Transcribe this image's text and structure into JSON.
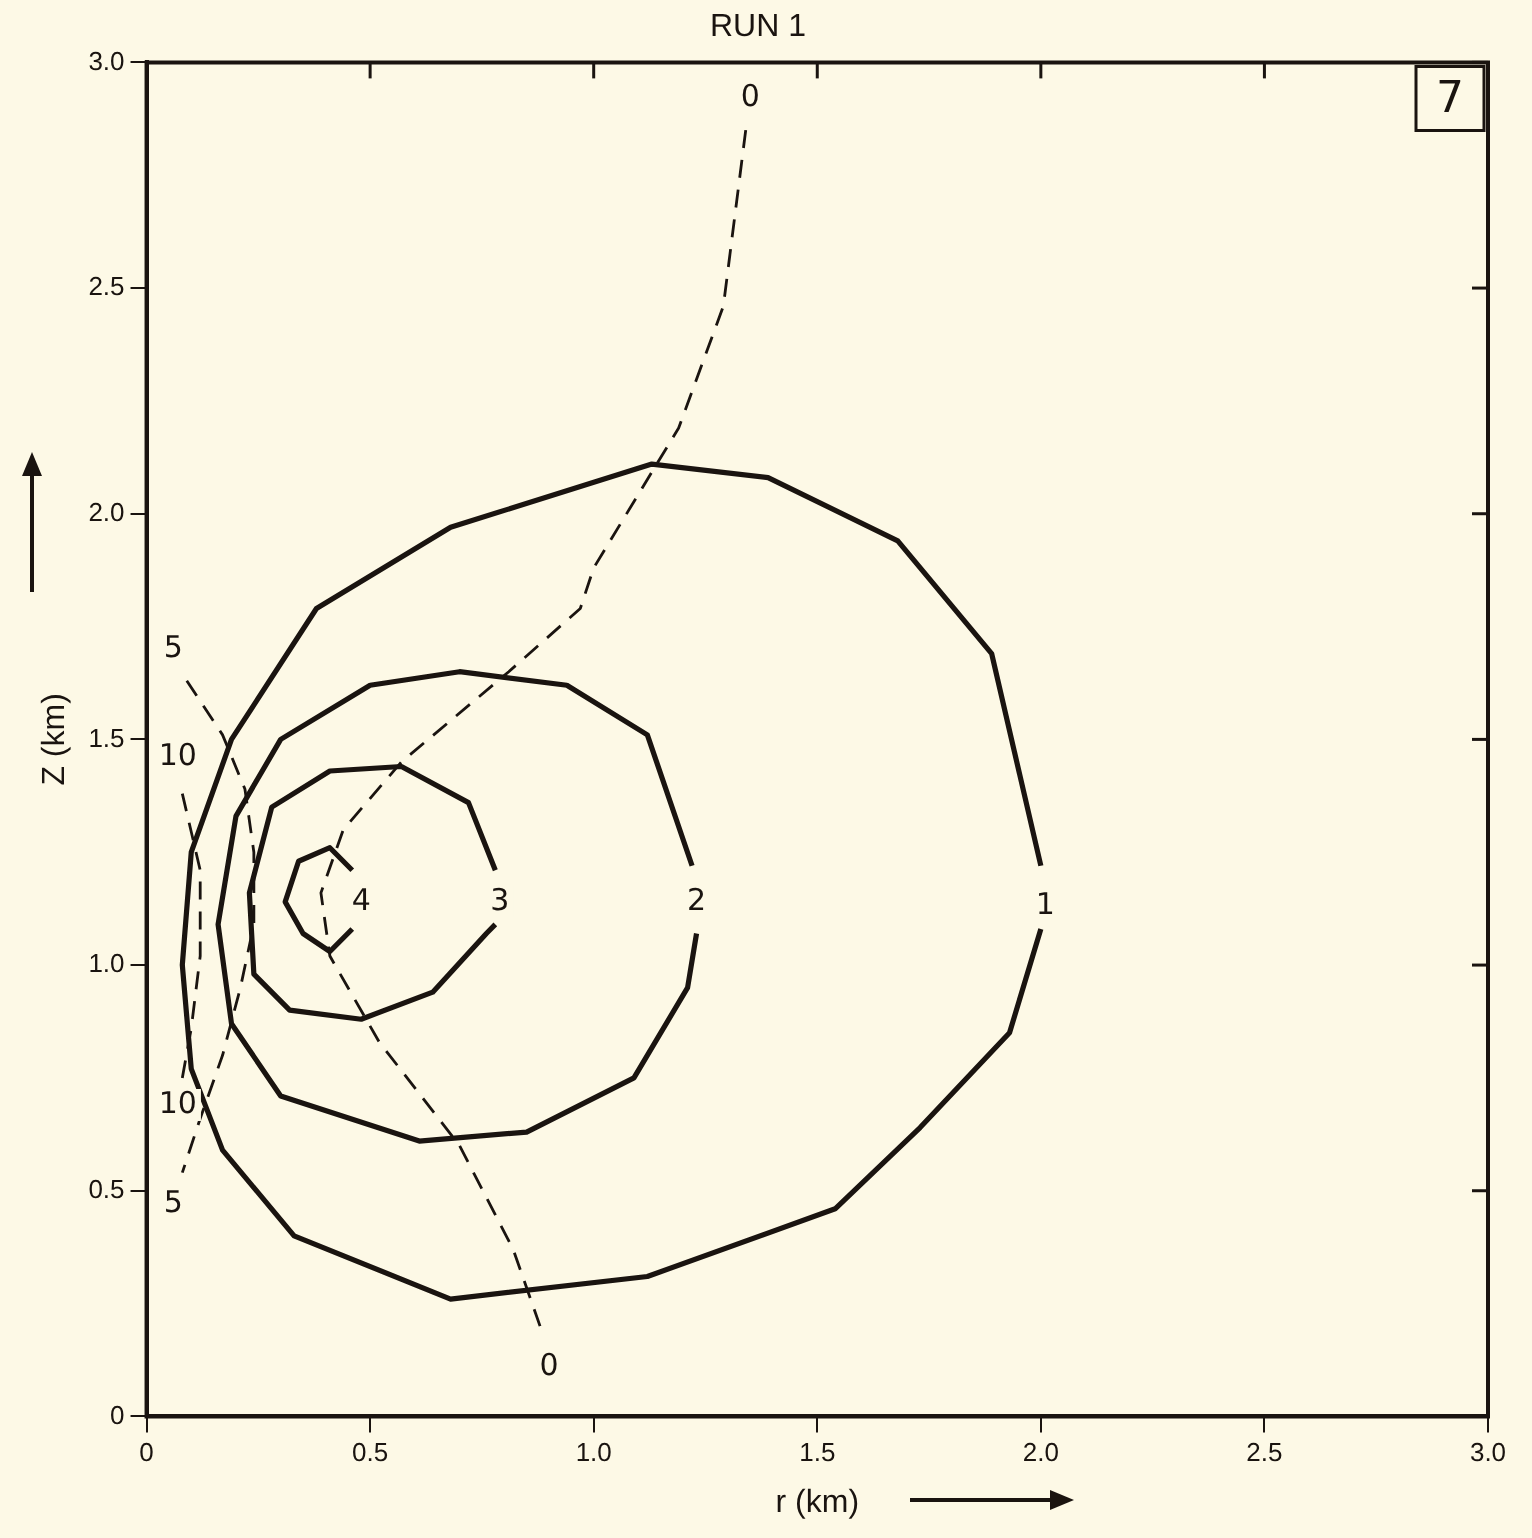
{
  "chart_data": {
    "type": "line",
    "title": "RUN 1",
    "xlabel": "r (km)",
    "ylabel": "Z (km)",
    "xlim": [
      0,
      3
    ],
    "ylim": [
      0,
      3
    ],
    "xticks": [
      0,
      {
        "value": 0.5,
        "label": "0.5"
      },
      {
        "value": 1,
        "label": "1.0"
      },
      {
        "value": 1.5,
        "label": "1.5"
      },
      {
        "value": 2,
        "label": "2.0"
      },
      {
        "value": 2.5,
        "label": "2.5"
      },
      {
        "value": 3,
        "label": "3.0"
      }
    ],
    "yticks": [
      0,
      {
        "value": 0.5,
        "label": "0.5"
      },
      {
        "value": 1,
        "label": "1.0"
      },
      {
        "value": 1.5,
        "label": "1.5"
      },
      {
        "value": 2,
        "label": "2.0"
      },
      {
        "value": 2.5,
        "label": "2.5"
      },
      {
        "value": 3,
        "label": "3.0"
      }
    ],
    "grid": false,
    "legend": false,
    "marker": "none",
    "series": [
      {
        "color": "#1a1410",
        "line_style": "solid",
        "x": [
          2.0,
          1.89,
          1.68,
          1.39,
          1.13,
          0.68,
          0.38,
          0.19,
          0.1,
          0.08,
          0.1,
          0.17,
          0.33,
          0.68,
          1.12,
          1.54,
          1.73,
          1.93,
          2.0
        ],
        "values": [
          1.22,
          1.69,
          1.94,
          2.08,
          2.11,
          1.97,
          1.79,
          1.5,
          1.25,
          1.0,
          0.77,
          0.59,
          0.4,
          0.26,
          0.31,
          0.46,
          0.64,
          0.85,
          1.08
        ]
      },
      {
        "color": "#1a1410",
        "line_style": "solid",
        "x": [
          1.22,
          1.12,
          0.94,
          0.7,
          0.5,
          0.3,
          0.2,
          0.16,
          0.19,
          0.3,
          0.61,
          0.85,
          1.09,
          1.21,
          1.23
        ],
        "values": [
          1.22,
          1.51,
          1.62,
          1.65,
          1.62,
          1.5,
          1.33,
          1.09,
          0.87,
          0.71,
          0.61,
          0.63,
          0.75,
          0.95,
          1.07
        ]
      },
      {
        "color": "#1a1410",
        "line_style": "solid",
        "x": [
          0.78,
          0.72,
          0.57,
          0.41,
          0.28,
          0.23,
          0.24,
          0.32,
          0.48,
          0.64,
          0.76,
          0.78
        ],
        "values": [
          1.21,
          1.36,
          1.44,
          1.43,
          1.35,
          1.16,
          0.98,
          0.9,
          0.88,
          0.94,
          1.07,
          1.09
        ]
      },
      {
        "color": "#1a1410",
        "line_style": "solid",
        "x": [
          0.46,
          0.41,
          0.34,
          0.31,
          0.35,
          0.41,
          0.46
        ],
        "values": [
          1.21,
          1.26,
          1.23,
          1.14,
          1.07,
          1.03,
          1.08
        ]
      },
      {
        "color": "#1a1410",
        "line_style": "dashed",
        "x": [
          1.34,
          1.29,
          1.19,
          1.0,
          0.97,
          0.81,
          0.57,
          0.44,
          0.39,
          0.41,
          0.52,
          0.7,
          0.82,
          0.88
        ],
        "values": [
          2.85,
          2.46,
          2.19,
          1.88,
          1.79,
          1.65,
          1.45,
          1.3,
          1.16,
          1.02,
          0.83,
          0.6,
          0.37,
          0.2
        ]
      },
      {
        "color": "#1a1410",
        "line_style": "dashed",
        "x": [
          0.09,
          0.17,
          0.22,
          0.24,
          0.24,
          0.21,
          0.17,
          0.12,
          0.08
        ],
        "values": [
          1.63,
          1.51,
          1.39,
          1.25,
          1.09,
          0.95,
          0.8,
          0.66,
          0.54
        ]
      },
      {
        "color": "#1a1410",
        "line_style": "dashed",
        "x": [
          0.08,
          0.12,
          0.12,
          0.1,
          0.08
        ],
        "values": [
          1.38,
          1.21,
          1.02,
          0.86,
          0.75
        ]
      }
    ],
    "annotations": [
      "7",
      {
        "text": "1",
        "x": 2.01,
        "y": 1.13
      },
      {
        "text": "2",
        "x": 1.23,
        "y": 1.14
      },
      {
        "text": "3",
        "x": 0.79,
        "y": 1.14
      },
      {
        "text": "4",
        "x": 0.48,
        "y": 1.14
      },
      {
        "text": "0",
        "x": 1.35,
        "y": 2.92
      },
      {
        "text": "0",
        "x": 0.9,
        "y": 0.11
      },
      {
        "text": "5",
        "x": 0.06,
        "y": 1.7
      },
      {
        "text": "5",
        "x": 0.06,
        "y": 0.47
      },
      {
        "text": "10",
        "x": 0.07,
        "y": 1.46
      },
      {
        "text": "10",
        "x": 0.07,
        "y": 0.69
      }
    ]
  }
}
